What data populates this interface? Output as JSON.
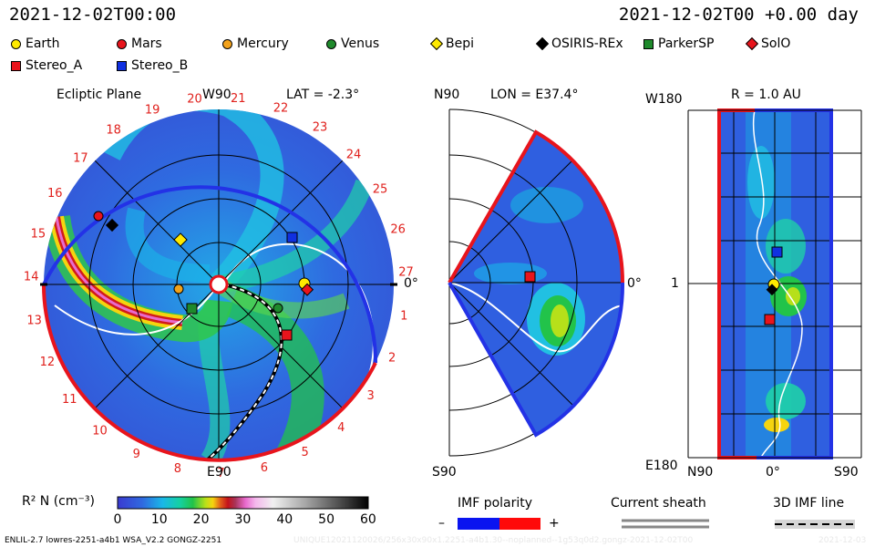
{
  "header": {
    "datetime": "2021-12-02T00:00",
    "offset": "2021-12-02T00 +0.00 day"
  },
  "legend": [
    {
      "label": "Earth",
      "shape": "circle",
      "color": "#ffea00"
    },
    {
      "label": "Mars",
      "shape": "circle",
      "color": "#e8141c"
    },
    {
      "label": "Mercury",
      "shape": "circle",
      "color": "#f3a21b"
    },
    {
      "label": "Venus",
      "shape": "circle",
      "color": "#1f8a2c"
    },
    {
      "label": "Bepi",
      "shape": "diamond",
      "color": "#ffea00"
    },
    {
      "label": "OSIRIS-REx",
      "shape": "diamond",
      "color": "#000000"
    },
    {
      "label": "ParkerSP",
      "shape": "square",
      "color": "#1f8a2c"
    },
    {
      "label": "SolO",
      "shape": "diamond",
      "color": "#e8141c"
    },
    {
      "label": "Stereo_A",
      "shape": "square",
      "color": "#e8141c"
    },
    {
      "label": "Stereo_B",
      "shape": "square",
      "color": "#1030e0"
    }
  ],
  "ecliptic": {
    "title": "Ecliptic Plane",
    "lat": "LAT = -2.3°",
    "top_label": "W90",
    "bottom_label": "E90",
    "right_label": "0°",
    "hour_labels": [
      "1",
      "2",
      "3",
      "4",
      "5",
      "6",
      "7",
      "8",
      "9",
      "10",
      "11",
      "12",
      "13",
      "14",
      "15",
      "16",
      "17",
      "18",
      "19",
      "20",
      "21",
      "22",
      "23",
      "24",
      "25",
      "26",
      "27"
    ]
  },
  "meridional": {
    "lon": "LON = E37.4°",
    "top_label": "N90",
    "bottom_label": "S90",
    "right_label": "0°"
  },
  "radial": {
    "title": "R = 1.0 AU",
    "top_left": "W180",
    "bottom_left": "E180",
    "mid_left": "1",
    "bottom_labels": [
      "N90",
      "0°",
      "S90"
    ]
  },
  "colorbar": {
    "label": "R² N (cm⁻³)",
    "ticks": [
      "0",
      "10",
      "20",
      "30",
      "40",
      "50",
      "60"
    ]
  },
  "imf": {
    "polarity_label": "IMF polarity",
    "minus": "–",
    "plus": "+",
    "sheath_label": "Current sheath",
    "line_label": "3D IMF line"
  },
  "footer": {
    "left": "ENLIL-2.7 lowres-2251-a4b1 WSA_V2.2 GONGZ-2251",
    "right": "UNIQUE12021120026/256x30x90x1.2251-a4b1.30--noplanned--1g53q0d2.gongz-2021-12-02T00",
    "date": "2021-12-03"
  }
}
